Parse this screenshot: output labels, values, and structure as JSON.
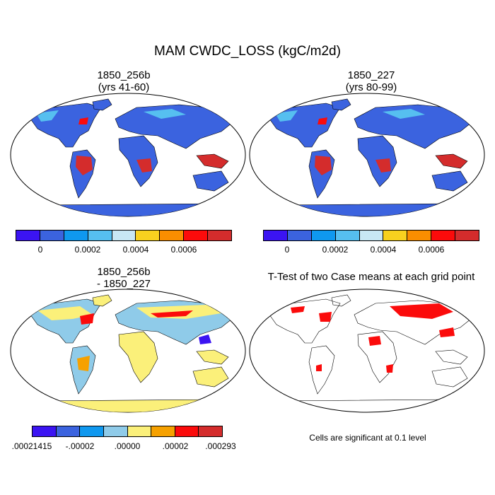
{
  "main_title": "MAM CWDC_LOSS (kgC/m2d)",
  "panels": [
    {
      "title_line1": "1850_256b",
      "title_line2": "(yrs 41-60)"
    },
    {
      "title_line1": "1850_227",
      "title_line2": "(yrs 80-99)"
    },
    {
      "title_line1": "1850_256b",
      "title_line2": "- 1850_227"
    },
    {
      "title_line1": "T-Test of two Case means at each grid point",
      "title_line2": ""
    }
  ],
  "colorbars": {
    "absolute": {
      "colors": [
        "#3b14f2",
        "#3b63df",
        "#0f98ef",
        "#56bff0",
        "#c8e7f4",
        "#f8d11f",
        "#f98e00",
        "#fb0b0b",
        "#d42c2c"
      ],
      "labels": [
        "0",
        "0.0002",
        "0.0004",
        "0.0006"
      ]
    },
    "difference": {
      "colors": [
        "#3b14f2",
        "#3b63df",
        "#0f98ef",
        "#8fcbe9",
        "#fbf07a",
        "#f6a100",
        "#fb0b0b",
        "#d42c2c"
      ],
      "labels": [
        ".00021415",
        "-.00002",
        ".00000",
        ".00002",
        ".000293"
      ]
    }
  },
  "map_colors": {
    "ocean": "#ffffff",
    "land_base": "#3b63df",
    "tropics_high": "#d42c2c",
    "diff_base": "#fbf07a",
    "diff_light": "#8fcbe9",
    "significant": "#fb0b0b",
    "coast": "#000000"
  },
  "ttest_note": "Cells are significant at 0.1 level"
}
